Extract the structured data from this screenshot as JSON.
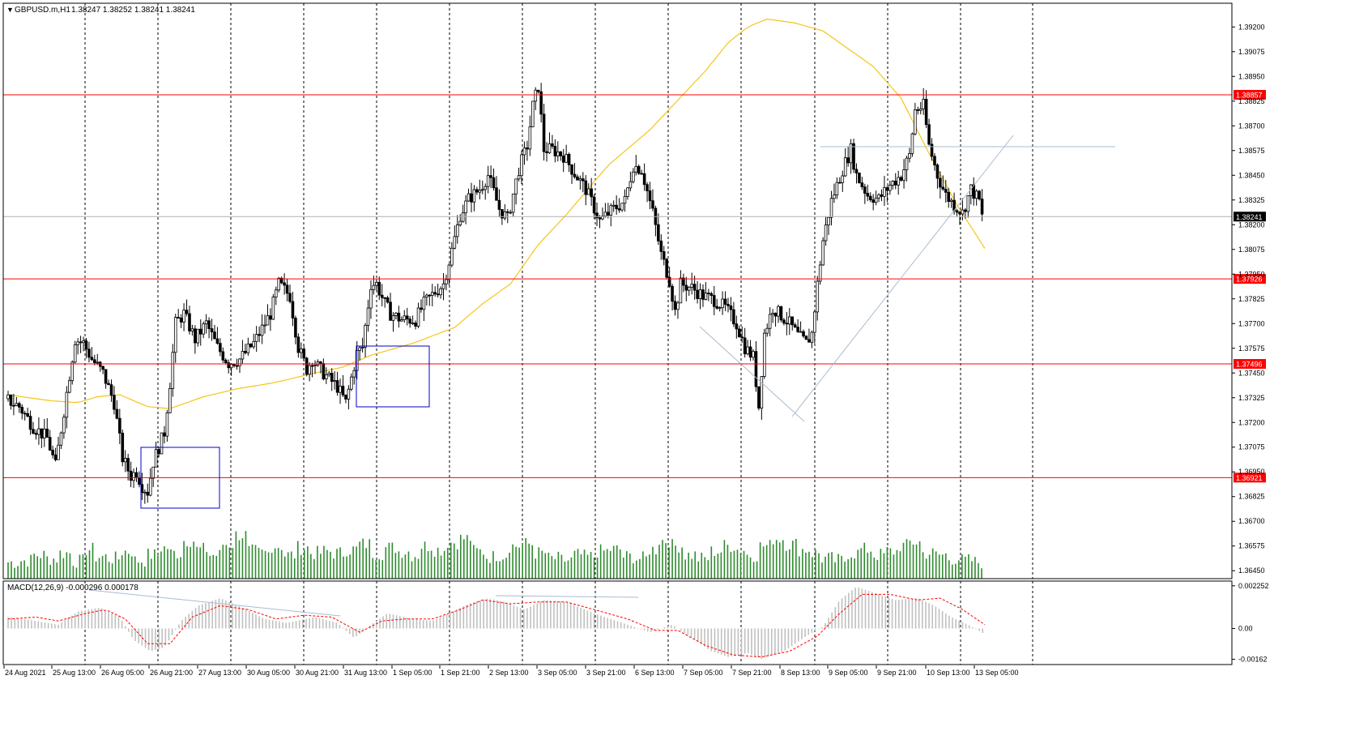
{
  "header": {
    "symbol_label": "GBPUSD.m,H1",
    "ohlc_text": "1.38247 1.38252 1.38241 1.38241",
    "indicator_label": "MACD(12,26,9) -0.000296  0.000178"
  },
  "colors": {
    "background": "#ffffff",
    "candle": "#000000",
    "volume": "#2e8b2e",
    "level_line": "#ff0000",
    "moving_average": "#f5c518",
    "trendline": "#a9bcd0",
    "box": "#0000cc",
    "macd_histogram": "#c0c0c0",
    "macd_signal": "#ff0000",
    "grid": "#000000",
    "price_tag_bg": "#000000"
  },
  "chart_data": [
    {
      "type": "candlestick",
      "title": "GBPUSD.m,H1",
      "series_name": "GBPUSD.m,H1",
      "timeframe": "H1",
      "x_tick_labels": [
        "24 Aug 2021",
        "25 Aug 13:00",
        "26 Aug 05:00",
        "26 Aug 21:00",
        "27 Aug 13:00",
        "30 Aug 05:00",
        "30 Aug 21:00",
        "31 Aug 13:00",
        "1 Sep 05:00",
        "1 Sep 21:00",
        "2 Sep 13:00",
        "3 Sep 05:00",
        "3 Sep 21:00",
        "6 Sep 13:00",
        "7 Sep 05:00",
        "7 Sep 21:00",
        "8 Sep 13:00",
        "9 Sep 05:00",
        "9 Sep 21:00",
        "10 Sep 13:00",
        "13 Sep 05:00"
      ],
      "y_tick_labels": [
        "1.39200",
        "1.39075",
        "1.38950",
        "1.38825",
        "1.38700",
        "1.38575",
        "1.38450",
        "1.38325",
        "1.38200",
        "1.38075",
        "1.37950",
        "1.37825",
        "1.37700",
        "1.37575",
        "1.37450",
        "1.37325",
        "1.37200",
        "1.37075",
        "1.36950",
        "1.36825",
        "1.36700",
        "1.36575",
        "1.36450"
      ],
      "ylim": [
        1.3641,
        1.3932
      ],
      "current_price": 1.38241,
      "current_price_label": "1.38241",
      "horizontal_levels": [
        {
          "value": 1.38857,
          "label": "1.38857"
        },
        {
          "value": 1.37926,
          "label": "1.37926"
        },
        {
          "value": 1.37496,
          "label": "1.37496"
        },
        {
          "value": 1.36921,
          "label": "1.36921"
        }
      ],
      "price_path": [
        [
          0,
          1.3732
        ],
        [
          5,
          1.3728
        ],
        [
          10,
          1.3718
        ],
        [
          15,
          1.3712
        ],
        [
          18,
          1.3698
        ],
        [
          22,
          1.3735
        ],
        [
          25,
          1.3762
        ],
        [
          28,
          1.376
        ],
        [
          31,
          1.3752
        ],
        [
          35,
          1.3745
        ],
        [
          39,
          1.373
        ],
        [
          42,
          1.3702
        ],
        [
          45,
          1.3693
        ],
        [
          47,
          1.3695
        ],
        [
          49,
          1.3688
        ],
        [
          51,
          1.3685
        ],
        [
          53,
          1.37
        ],
        [
          57,
          1.3715
        ],
        [
          59,
          1.374
        ],
        [
          61,
          1.377
        ],
        [
          64,
          1.3775
        ],
        [
          68,
          1.3762
        ],
        [
          72,
          1.377
        ],
        [
          76,
          1.3758
        ],
        [
          80,
          1.375
        ],
        [
          84,
          1.3752
        ],
        [
          89,
          1.376
        ],
        [
          95,
          1.3775
        ],
        [
          98,
          1.379
        ],
        [
          102,
          1.3784
        ],
        [
          105,
          1.3758
        ],
        [
          108,
          1.3747
        ],
        [
          110,
          1.3752
        ],
        [
          112,
          1.3748
        ],
        [
          116,
          1.3742
        ],
        [
          119,
          1.3738
        ],
        [
          122,
          1.373
        ],
        [
          126,
          1.3755
        ],
        [
          128,
          1.3758
        ],
        [
          131,
          1.379
        ],
        [
          133,
          1.379
        ],
        [
          136,
          1.378
        ],
        [
          138,
          1.3775
        ],
        [
          142,
          1.3772
        ],
        [
          147,
          1.3772
        ],
        [
          150,
          1.378
        ],
        [
          154,
          1.3786
        ],
        [
          157,
          1.379
        ],
        [
          160,
          1.3807
        ],
        [
          163,
          1.3825
        ],
        [
          166,
          1.3833
        ],
        [
          170,
          1.3838
        ],
        [
          173,
          1.3845
        ],
        [
          177,
          1.3828
        ],
        [
          180,
          1.3823
        ],
        [
          184,
          1.3848
        ],
        [
          187,
          1.386
        ],
        [
          189,
          1.388
        ],
        [
          191,
          1.389
        ],
        [
          193,
          1.3858
        ],
        [
          196,
          1.3858
        ],
        [
          200,
          1.3855
        ],
        [
          204,
          1.3846
        ],
        [
          208,
          1.3838
        ],
        [
          213,
          1.3822
        ],
        [
          218,
          1.3828
        ],
        [
          222,
          1.3832
        ],
        [
          225,
          1.385
        ],
        [
          228,
          1.3848
        ],
        [
          232,
          1.3826
        ],
        [
          235,
          1.3805
        ],
        [
          238,
          1.3792
        ],
        [
          240,
          1.3776
        ],
        [
          242,
          1.379
        ],
        [
          246,
          1.3788
        ],
        [
          250,
          1.3784
        ],
        [
          254,
          1.3782
        ],
        [
          258,
          1.3778
        ],
        [
          262,
          1.377
        ],
        [
          265,
          1.3758
        ],
        [
          268,
          1.3753
        ],
        [
          270,
          1.3728
        ],
        [
          272,
          1.3765
        ],
        [
          275,
          1.3778
        ],
        [
          278,
          1.3774
        ],
        [
          281,
          1.377
        ],
        [
          284,
          1.3764
        ],
        [
          287,
          1.376
        ],
        [
          289,
          1.3765
        ],
        [
          291,
          1.379
        ],
        [
          293,
          1.3812
        ],
        [
          296,
          1.3832
        ],
        [
          300,
          1.3848
        ],
        [
          303,
          1.3858
        ],
        [
          305,
          1.3845
        ],
        [
          309,
          1.3835
        ],
        [
          313,
          1.3833
        ],
        [
          317,
          1.384
        ],
        [
          321,
          1.3845
        ],
        [
          324,
          1.3855
        ],
        [
          326,
          1.3878
        ],
        [
          329,
          1.388
        ],
        [
          331,
          1.386
        ],
        [
          334,
          1.3845
        ],
        [
          337,
          1.3835
        ],
        [
          340,
          1.383
        ],
        [
          343,
          1.3826
        ],
        [
          346,
          1.3838
        ],
        [
          349,
          1.3832
        ],
        [
          350,
          1.3824
        ]
      ],
      "volume_relative": [
        0.25,
        0.3,
        0.45,
        0.35,
        0.5,
        0.28,
        0.6,
        0.4,
        0.35,
        0.55,
        0.3,
        0.45,
        0.65,
        0.5,
        0.85,
        0.6,
        0.45,
        0.75,
        1.0,
        0.55,
        0.5,
        0.7,
        0.45,
        0.65,
        0.5,
        0.55,
        0.5,
        0.6,
        0.75,
        0.5,
        0.65,
        0.55,
        0.45,
        0.7,
        0.6,
        0.8,
        0.9,
        0.55,
        0.4,
        0.45,
        0.7,
        0.75,
        0.5,
        0.35,
        0.3,
        0.45,
        0.4,
        0.55,
        0.6,
        0.4,
        0.35,
        0.6,
        0.85,
        0.7,
        0.45,
        0.35,
        0.55,
        0.7,
        0.6,
        0.45,
        0.7,
        0.9,
        0.75,
        0.6,
        0.5,
        0.35,
        0.3,
        0.5,
        0.6,
        0.45,
        0.55,
        0.7,
        0.8,
        0.5,
        0.45,
        0.35,
        0.3,
        0.25
      ],
      "moving_average": [
        [
          0,
          1.3734
        ],
        [
          15,
          1.3731
        ],
        [
          25,
          1.373
        ],
        [
          32,
          1.3733
        ],
        [
          40,
          1.3734
        ],
        [
          50,
          1.3728
        ],
        [
          58,
          1.3727
        ],
        [
          70,
          1.3733
        ],
        [
          82,
          1.3737
        ],
        [
          95,
          1.374
        ],
        [
          110,
          1.3745
        ],
        [
          120,
          1.3748
        ],
        [
          130,
          1.3754
        ],
        [
          145,
          1.376
        ],
        [
          160,
          1.3768
        ],
        [
          170,
          1.378
        ],
        [
          180,
          1.379
        ],
        [
          190,
          1.381
        ],
        [
          200,
          1.3825
        ],
        [
          215,
          1.385
        ],
        [
          230,
          1.3868
        ],
        [
          240,
          1.3883
        ],
        [
          250,
          1.3898
        ],
        [
          258,
          1.3912
        ],
        [
          265,
          1.392
        ],
        [
          272,
          1.3924
        ],
        [
          282,
          1.3922
        ],
        [
          292,
          1.3918
        ],
        [
          300,
          1.391
        ],
        [
          310,
          1.39
        ],
        [
          320,
          1.3884
        ],
        [
          330,
          1.3856
        ],
        [
          340,
          1.383
        ],
        [
          350,
          1.3808
        ]
      ],
      "macd_indicator": {
        "name": "MACD(12,26,9)",
        "main_value": -0.000296,
        "signal_value": 0.000178,
        "y_tick_labels": [
          "0.002252",
          "0.00",
          "-0.00162"
        ],
        "ylim": [
          -0.0019,
          0.0025
        ],
        "histogram": [
          [
            0,
            0.0006
          ],
          [
            10,
            0.0004
          ],
          [
            18,
            0.0002
          ],
          [
            25,
            0.0009
          ],
          [
            33,
            0.0011
          ],
          [
            40,
            0.0006
          ],
          [
            45,
            -0.0006
          ],
          [
            51,
            -0.0012
          ],
          [
            56,
            -0.001
          ],
          [
            62,
            0.0004
          ],
          [
            68,
            0.0012
          ],
          [
            76,
            0.0016
          ],
          [
            84,
            0.0011
          ],
          [
            92,
            0.0005
          ],
          [
            100,
            0.0003
          ],
          [
            110,
            0.0006
          ],
          [
            118,
            0.0003
          ],
          [
            124,
            -0.0005
          ],
          [
            130,
            0.0002
          ],
          [
            136,
            0.0008
          ],
          [
            145,
            0.0005
          ],
          [
            152,
            0.0004
          ],
          [
            158,
            0.0008
          ],
          [
            165,
            0.0013
          ],
          [
            172,
            0.0016
          ],
          [
            178,
            0.0014
          ],
          [
            185,
            0.001
          ],
          [
            192,
            0.0015
          ],
          [
            200,
            0.0014
          ],
          [
            210,
            0.0008
          ],
          [
            220,
            0.0003
          ],
          [
            230,
            -0.0002
          ],
          [
            238,
            0.0002
          ],
          [
            245,
            -0.0005
          ],
          [
            252,
            -0.0012
          ],
          [
            258,
            -0.0015
          ],
          [
            265,
            -0.0013
          ],
          [
            270,
            -0.0016
          ],
          [
            278,
            -0.0012
          ],
          [
            286,
            -0.0004
          ],
          [
            292,
            0.0001
          ],
          [
            298,
            0.0015
          ],
          [
            304,
            0.0022
          ],
          [
            310,
            0.0019
          ],
          [
            318,
            0.0015
          ],
          [
            326,
            0.0016
          ],
          [
            332,
            0.0012
          ],
          [
            338,
            0.0006
          ],
          [
            344,
            0.0002
          ],
          [
            350,
            -0.0003
          ]
        ],
        "signal": [
          [
            0,
            0.0005
          ],
          [
            10,
            0.0006
          ],
          [
            18,
            0.0004
          ],
          [
            28,
            0.0008
          ],
          [
            35,
            0.001
          ],
          [
            42,
            0.0005
          ],
          [
            50,
            -0.0008
          ],
          [
            58,
            -0.0008
          ],
          [
            66,
            0.0006
          ],
          [
            76,
            0.0012
          ],
          [
            86,
            0.001
          ],
          [
            96,
            0.0005
          ],
          [
            106,
            0.0007
          ],
          [
            116,
            0.0006
          ],
          [
            126,
            -0.0002
          ],
          [
            134,
            0.0004
          ],
          [
            142,
            0.0005
          ],
          [
            152,
            0.0005
          ],
          [
            162,
            0.001
          ],
          [
            170,
            0.0015
          ],
          [
            180,
            0.0013
          ],
          [
            190,
            0.0014
          ],
          [
            200,
            0.0014
          ],
          [
            210,
            0.001
          ],
          [
            222,
            0.0005
          ],
          [
            232,
            -0.0001
          ],
          [
            240,
            -0.0001
          ],
          [
            250,
            -0.0009
          ],
          [
            260,
            -0.0014
          ],
          [
            270,
            -0.0015
          ],
          [
            280,
            -0.0012
          ],
          [
            290,
            -0.0004
          ],
          [
            298,
            0.0008
          ],
          [
            306,
            0.0018
          ],
          [
            316,
            0.0018
          ],
          [
            326,
            0.0015
          ],
          [
            334,
            0.0016
          ],
          [
            342,
            0.001
          ],
          [
            350,
            0.0002
          ]
        ]
      }
    }
  ]
}
